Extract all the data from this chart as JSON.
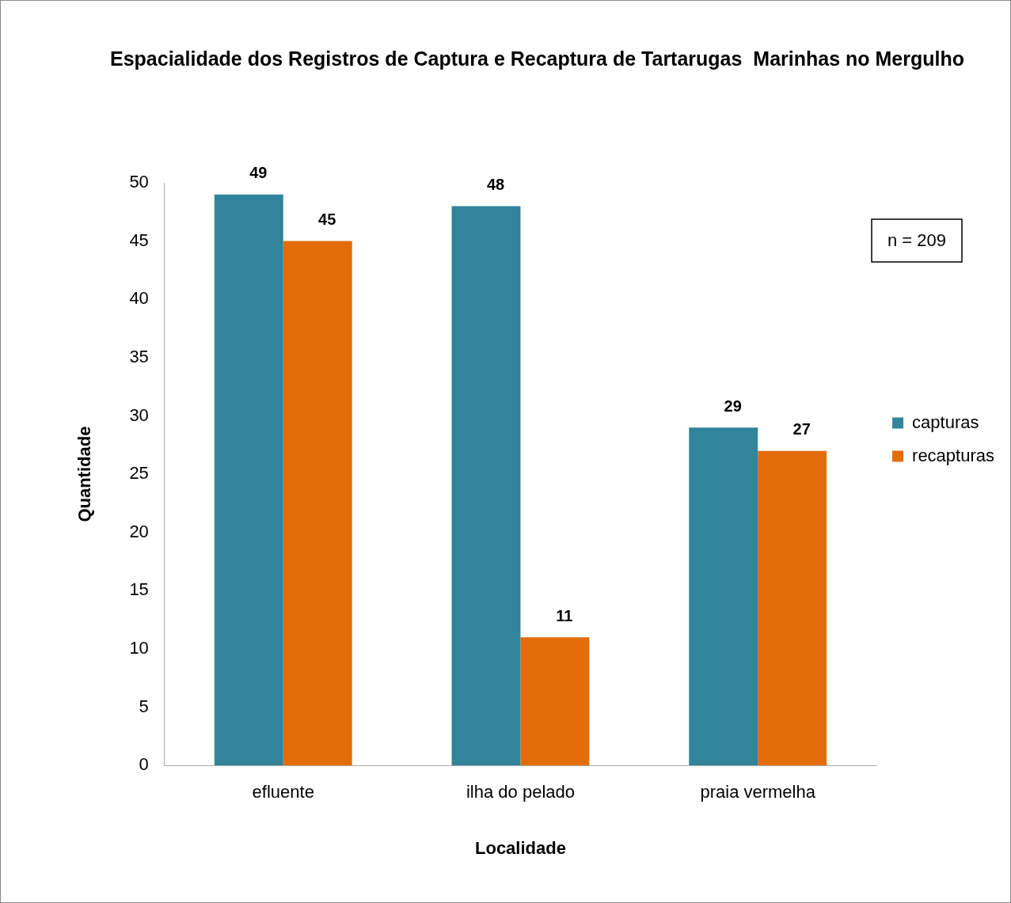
{
  "chart_data": {
    "type": "bar",
    "title": "Espacialidade dos Registros de Captura e Recaptura de Tartarugas  Marinhas no Mergulho",
    "xlabel": "Localidade",
    "ylabel": "Quantidade",
    "categories": [
      "efluente",
      "ilha do pelado",
      "praia vermelha"
    ],
    "series": [
      {
        "name": "capturas",
        "color": "#31849b",
        "values": [
          49,
          48,
          29
        ]
      },
      {
        "name": "recapturas",
        "color": "#e36c09",
        "values": [
          45,
          11,
          27
        ]
      }
    ],
    "ylim": [
      0,
      50
    ],
    "yticks": [
      0,
      5,
      10,
      15,
      20,
      25,
      30,
      35,
      40,
      45,
      50
    ],
    "grid": false,
    "legend": "right",
    "data_labels": true,
    "annotations": [
      "n = 209"
    ]
  }
}
